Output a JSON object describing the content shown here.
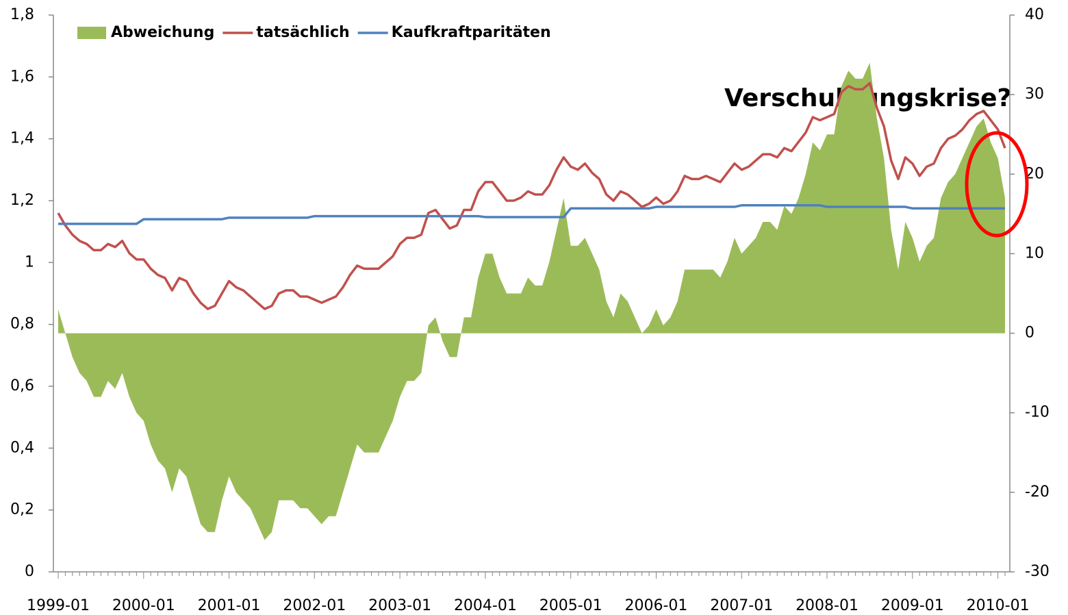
{
  "chart_data": {
    "type": "line",
    "categories": [
      "1999-01",
      null,
      null,
      null,
      null,
      null,
      null,
      null,
      null,
      null,
      null,
      null,
      "2000-01",
      null,
      null,
      null,
      null,
      null,
      null,
      null,
      null,
      null,
      null,
      null,
      "2001-01",
      null,
      null,
      null,
      null,
      null,
      null,
      null,
      null,
      null,
      null,
      null,
      "2002-01",
      null,
      null,
      null,
      null,
      null,
      null,
      null,
      null,
      null,
      null,
      null,
      "2003-01",
      null,
      null,
      null,
      null,
      null,
      null,
      null,
      null,
      null,
      null,
      null,
      "2004-01",
      null,
      null,
      null,
      null,
      null,
      null,
      null,
      null,
      null,
      null,
      null,
      "2005-01",
      null,
      null,
      null,
      null,
      null,
      null,
      null,
      null,
      null,
      null,
      null,
      "2006-01",
      null,
      null,
      null,
      null,
      null,
      null,
      null,
      null,
      null,
      null,
      null,
      "2007-01",
      null,
      null,
      null,
      null,
      null,
      null,
      null,
      null,
      null,
      null,
      null,
      "2008-01",
      null,
      null,
      null,
      null,
      null,
      null,
      null,
      null,
      null,
      null,
      null,
      "2009-01",
      null,
      null,
      null,
      null,
      null,
      null,
      null,
      null,
      null,
      null,
      null,
      "2010-01",
      null
    ],
    "series": [
      {
        "name": "Abweichung",
        "type": "area",
        "axis": "y2",
        "color": "#9bbb59",
        "values": [
          3,
          0,
          -3,
          -5,
          -6,
          -8,
          -8,
          -6,
          -7,
          -5,
          -8,
          -10,
          -11,
          -14,
          -16,
          -17,
          -20,
          -17,
          -18,
          -21,
          -24,
          -25,
          -25,
          -21,
          -18,
          -20,
          -21,
          -22,
          -24,
          -26,
          -25,
          -21,
          -21,
          -21,
          -22,
          -22,
          -23,
          -24,
          -23,
          -23,
          -20,
          -17,
          -14,
          -15,
          -15,
          -15,
          -13,
          -11,
          -8,
          -6,
          -6,
          -5,
          1,
          2,
          -1,
          -3,
          -3,
          2,
          2,
          7,
          10,
          10,
          7,
          5,
          5,
          5,
          7,
          6,
          6,
          9,
          13,
          17,
          11,
          11,
          12,
          10,
          8,
          4,
          2,
          5,
          4,
          2,
          0,
          1,
          3,
          1,
          2,
          4,
          8,
          8,
          8,
          8,
          8,
          7,
          9,
          12,
          10,
          11,
          12,
          14,
          14,
          13,
          16,
          15,
          17,
          20,
          24,
          23,
          25,
          25,
          31,
          33,
          32,
          32,
          34,
          27,
          22,
          13,
          8,
          14,
          12,
          9,
          11,
          12,
          17,
          19,
          20,
          22,
          24,
          26,
          27,
          24,
          22,
          17
        ]
      },
      {
        "name": "tatsächlich",
        "type": "line",
        "color": "#c0504d",
        "values": [
          1.16,
          1.12,
          1.09,
          1.07,
          1.06,
          1.04,
          1.04,
          1.06,
          1.05,
          1.07,
          1.03,
          1.01,
          1.01,
          0.98,
          0.96,
          0.95,
          0.91,
          0.95,
          0.94,
          0.9,
          0.87,
          0.85,
          0.86,
          0.9,
          0.94,
          0.92,
          0.91,
          0.89,
          0.87,
          0.85,
          0.86,
          0.9,
          0.91,
          0.91,
          0.89,
          0.89,
          0.88,
          0.87,
          0.88,
          0.89,
          0.92,
          0.96,
          0.99,
          0.98,
          0.98,
          0.98,
          1.0,
          1.02,
          1.06,
          1.08,
          1.08,
          1.09,
          1.16,
          1.17,
          1.14,
          1.11,
          1.12,
          1.17,
          1.17,
          1.23,
          1.26,
          1.26,
          1.23,
          1.2,
          1.2,
          1.21,
          1.23,
          1.22,
          1.22,
          1.25,
          1.3,
          1.34,
          1.31,
          1.3,
          1.32,
          1.29,
          1.27,
          1.22,
          1.2,
          1.23,
          1.22,
          1.2,
          1.18,
          1.19,
          1.21,
          1.19,
          1.2,
          1.23,
          1.28,
          1.27,
          1.27,
          1.28,
          1.27,
          1.26,
          1.29,
          1.32,
          1.3,
          1.31,
          1.33,
          1.35,
          1.35,
          1.34,
          1.37,
          1.36,
          1.39,
          1.42,
          1.47,
          1.46,
          1.47,
          1.48,
          1.55,
          1.57,
          1.56,
          1.56,
          1.58,
          1.5,
          1.44,
          1.33,
          1.27,
          1.34,
          1.32,
          1.28,
          1.31,
          1.32,
          1.37,
          1.4,
          1.41,
          1.43,
          1.46,
          1.48,
          1.49,
          1.46,
          1.43,
          1.37
        ]
      },
      {
        "name": "Kaufkraftparitäten",
        "type": "line",
        "color": "#4f81bd",
        "values": [
          1.125,
          1.125,
          1.125,
          1.125,
          1.125,
          1.125,
          1.125,
          1.125,
          1.125,
          1.125,
          1.125,
          1.125,
          1.14,
          1.14,
          1.14,
          1.14,
          1.14,
          1.14,
          1.14,
          1.14,
          1.14,
          1.14,
          1.14,
          1.14,
          1.145,
          1.145,
          1.145,
          1.145,
          1.145,
          1.145,
          1.145,
          1.145,
          1.145,
          1.145,
          1.145,
          1.145,
          1.15,
          1.15,
          1.15,
          1.15,
          1.15,
          1.15,
          1.15,
          1.15,
          1.15,
          1.15,
          1.15,
          1.15,
          1.15,
          1.15,
          1.15,
          1.15,
          1.15,
          1.15,
          1.15,
          1.15,
          1.15,
          1.15,
          1.15,
          1.15,
          1.147,
          1.147,
          1.147,
          1.147,
          1.147,
          1.147,
          1.147,
          1.147,
          1.147,
          1.147,
          1.147,
          1.147,
          1.175,
          1.175,
          1.175,
          1.175,
          1.175,
          1.175,
          1.175,
          1.175,
          1.175,
          1.175,
          1.175,
          1.175,
          1.18,
          1.18,
          1.18,
          1.18,
          1.18,
          1.18,
          1.18,
          1.18,
          1.18,
          1.18,
          1.18,
          1.18,
          1.185,
          1.185,
          1.185,
          1.185,
          1.185,
          1.185,
          1.185,
          1.185,
          1.185,
          1.185,
          1.185,
          1.185,
          1.18,
          1.18,
          1.18,
          1.18,
          1.18,
          1.18,
          1.18,
          1.18,
          1.18,
          1.18,
          1.18,
          1.18,
          1.175,
          1.175,
          1.175,
          1.175,
          1.175,
          1.175,
          1.175,
          1.175,
          1.175,
          1.175,
          1.175,
          1.175,
          1.175,
          1.175
        ]
      }
    ],
    "ylim": [
      0,
      1.8
    ],
    "yticks": [
      0,
      {
        "value": 0.2,
        "label": "0,2"
      },
      {
        "value": 0.4,
        "label": "0,4"
      },
      {
        "value": 0.6,
        "label": "0,6"
      },
      {
        "value": 0.8,
        "label": "0,8"
      },
      1,
      {
        "value": 1.2,
        "label": "1,2"
      },
      {
        "value": 1.4,
        "label": "1,4"
      },
      {
        "value": 1.6,
        "label": "1,6"
      },
      {
        "value": 1.8,
        "label": "1,8"
      }
    ],
    "y2lim": [
      -30,
      40
    ],
    "y2ticks": [
      -30,
      -20,
      -10,
      0,
      10,
      20,
      30,
      40
    ],
    "annotation": "Verschuldungskrise?",
    "legend": "top-left",
    "grid": false
  }
}
